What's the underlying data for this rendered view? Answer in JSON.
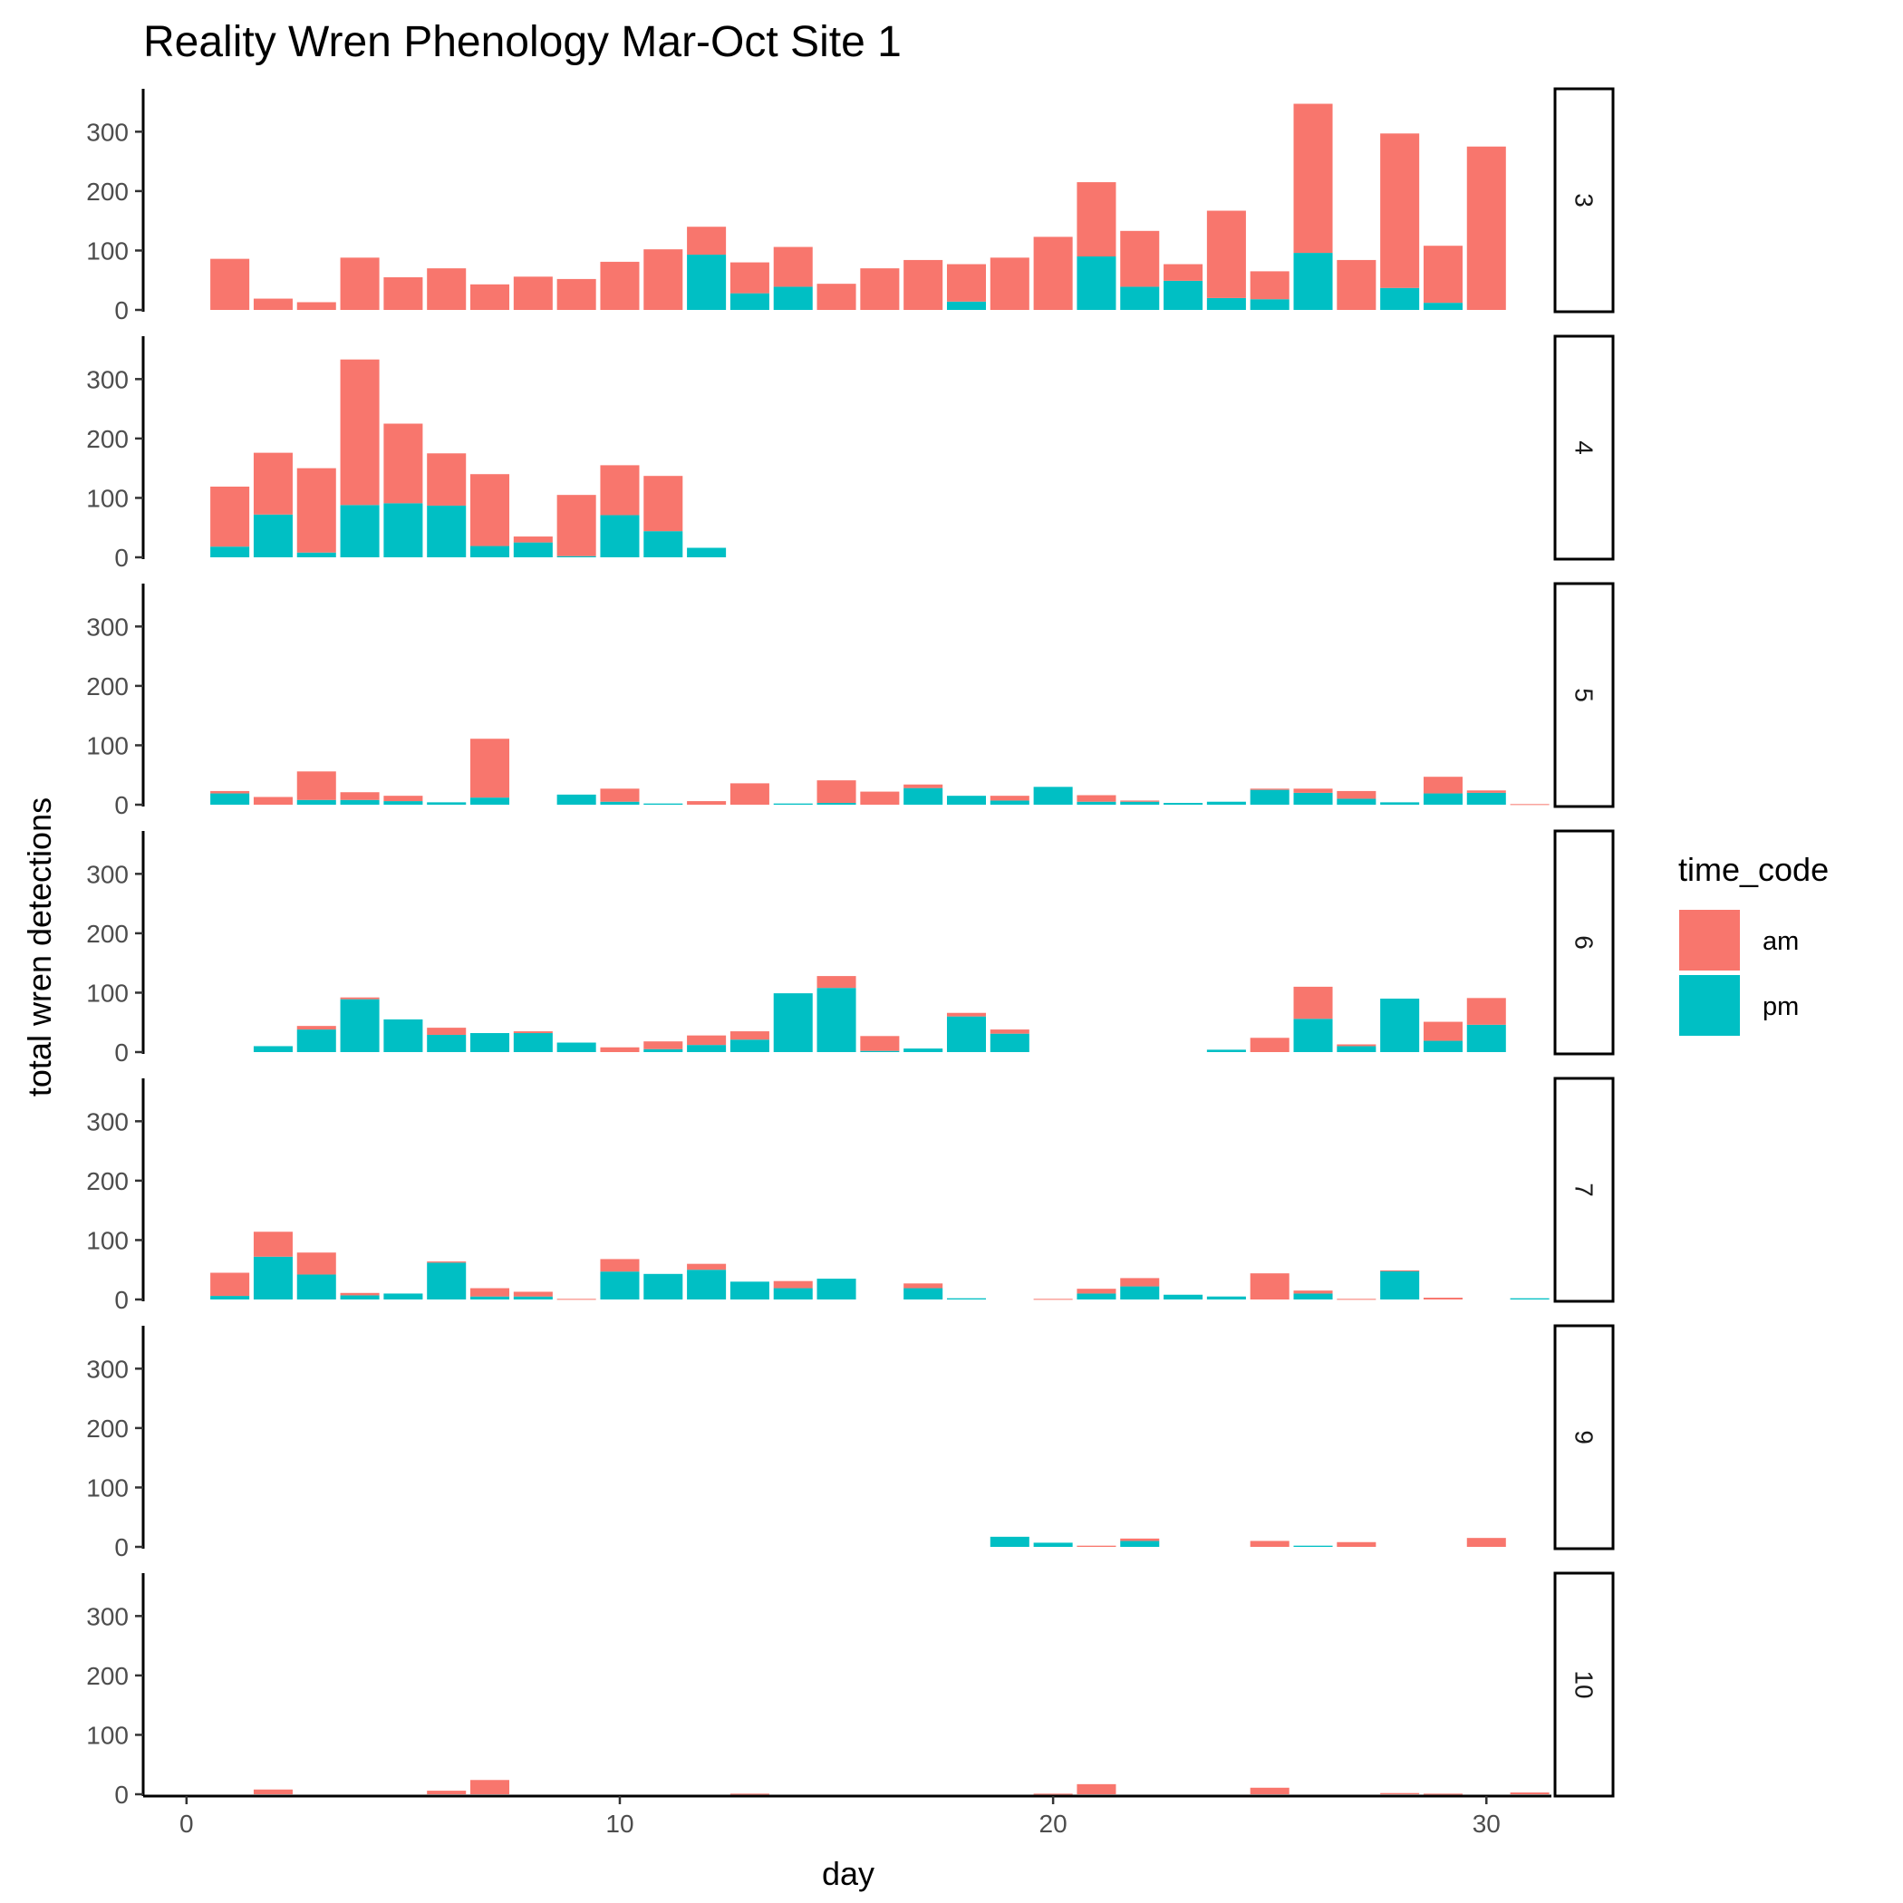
{
  "chart_data": {
    "type": "bar",
    "stacked": true,
    "title": "Reality Wren Phenology Mar-Oct Site 1",
    "xlabel": "day",
    "ylabel": "total wren detections",
    "xlim": [
      -1,
      31.5
    ],
    "ylim": [
      0,
      360
    ],
    "x_ticks": [
      0,
      10,
      20,
      30
    ],
    "y_ticks": [
      0,
      100,
      200,
      300
    ],
    "grid": false,
    "legend": {
      "title": "time_code",
      "position": "right",
      "entries": [
        {
          "name": "am",
          "color": "#F8766D"
        },
        {
          "name": "pm",
          "color": "#00BFC4"
        }
      ]
    },
    "panels": [
      {
        "label": "3",
        "days": [
          1,
          2,
          3,
          4,
          5,
          6,
          7,
          8,
          9,
          10,
          11,
          12,
          13,
          14,
          15,
          16,
          17,
          18,
          19,
          20,
          21,
          22,
          23,
          24,
          25,
          26,
          27,
          28,
          29,
          30
        ],
        "am": [
          86,
          19,
          13,
          88,
          55,
          70,
          43,
          56,
          52,
          81,
          102,
          47,
          52,
          67,
          44,
          70,
          84,
          63,
          88,
          123,
          125,
          94,
          28,
          147,
          47,
          251,
          84,
          260,
          96,
          275
        ],
        "pm": [
          0,
          0,
          0,
          0,
          0,
          0,
          0,
          0,
          0,
          0,
          0,
          93,
          28,
          39,
          0,
          0,
          0,
          14,
          0,
          0,
          90,
          39,
          49,
          20,
          18,
          96,
          0,
          37,
          12,
          0
        ]
      },
      {
        "label": "4",
        "days": [
          1,
          2,
          3,
          4,
          5,
          6,
          7,
          8,
          9,
          10,
          11,
          12
        ],
        "am": [
          101,
          104,
          142,
          245,
          134,
          88,
          121,
          10,
          103,
          84,
          93,
          0
        ],
        "pm": [
          18,
          72,
          8,
          88,
          91,
          87,
          19,
          25,
          2,
          71,
          44,
          16
        ]
      },
      {
        "label": "5",
        "days": [
          1,
          2,
          3,
          4,
          5,
          6,
          7,
          9,
          10,
          11,
          12,
          13,
          14,
          15,
          16,
          17,
          18,
          19,
          20,
          21,
          22,
          23,
          24,
          25,
          26,
          27,
          28,
          29,
          30,
          31
        ],
        "am": [
          4,
          13,
          48,
          13,
          9,
          0,
          99,
          0,
          22,
          0,
          6,
          36,
          0,
          38,
          22,
          6,
          0,
          8,
          0,
          11,
          2,
          0,
          0,
          2,
          7,
          13,
          0,
          28,
          4,
          1
        ],
        "pm": [
          19,
          0,
          8,
          8,
          6,
          4,
          12,
          17,
          5,
          2,
          0,
          0,
          2,
          3,
          0,
          28,
          15,
          7,
          30,
          5,
          5,
          3,
          5,
          25,
          20,
          10,
          4,
          19,
          20,
          0
        ]
      },
      {
        "label": "6",
        "days": [
          2,
          3,
          4,
          5,
          6,
          7,
          8,
          9,
          10,
          11,
          12,
          13,
          14,
          15,
          16,
          17,
          18,
          19,
          24,
          25,
          26,
          27,
          28,
          29,
          30
        ],
        "am": [
          0,
          6,
          3,
          0,
          12,
          0,
          3,
          0,
          8,
          13,
          16,
          14,
          0,
          20,
          25,
          0,
          6,
          7,
          0,
          24,
          54,
          3,
          0,
          32,
          45
        ],
        "pm": [
          10,
          38,
          89,
          55,
          29,
          32,
          32,
          16,
          0,
          5,
          12,
          21,
          99,
          108,
          2,
          6,
          60,
          31,
          4,
          0,
          56,
          10,
          90,
          19,
          46
        ]
      },
      {
        "label": "7",
        "days": [
          1,
          2,
          3,
          4,
          5,
          6,
          7,
          8,
          9,
          10,
          11,
          12,
          13,
          14,
          15,
          17,
          18,
          20,
          21,
          22,
          23,
          24,
          25,
          26,
          27,
          28,
          29,
          31
        ],
        "am": [
          39,
          42,
          37,
          4,
          0,
          2,
          14,
          8,
          1,
          21,
          0,
          10,
          0,
          12,
          0,
          8,
          0,
          1,
          8,
          14,
          0,
          0,
          44,
          5,
          1,
          1,
          3,
          0
        ],
        "pm": [
          6,
          72,
          42,
          7,
          10,
          62,
          5,
          5,
          0,
          47,
          43,
          50,
          30,
          19,
          35,
          19,
          2,
          0,
          10,
          22,
          8,
          5,
          0,
          10,
          0,
          48,
          0,
          2
        ]
      },
      {
        "label": "9",
        "days": [
          19,
          20,
          21,
          22,
          25,
          26,
          27,
          30
        ],
        "am": [
          0,
          0,
          2,
          4,
          10,
          0,
          8,
          15
        ],
        "pm": [
          17,
          7,
          0,
          10,
          0,
          2,
          0,
          0
        ]
      },
      {
        "label": "10",
        "days": [
          2,
          6,
          7,
          13,
          20,
          21,
          25,
          28,
          29,
          31
        ],
        "am": [
          8,
          6,
          24,
          1,
          1,
          17,
          11,
          2,
          1,
          3
        ],
        "pm": [
          0,
          0,
          0,
          0,
          0,
          0,
          0,
          0,
          0,
          0
        ]
      }
    ]
  }
}
